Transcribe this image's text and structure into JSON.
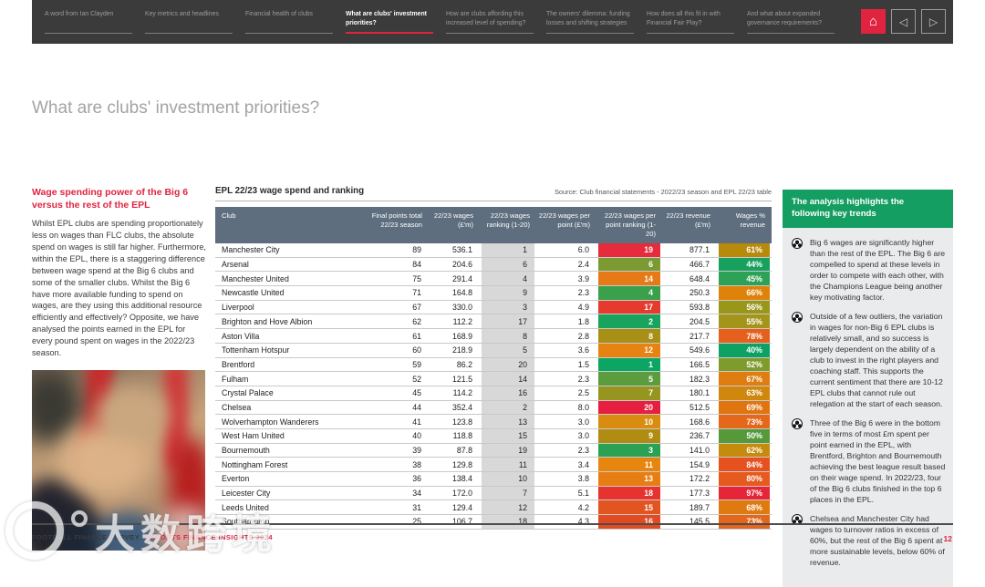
{
  "nav": {
    "tabs": [
      {
        "label": "A word from Ian Clayden",
        "active": false
      },
      {
        "label": "Key metrics and headlines",
        "active": false
      },
      {
        "label": "Financial health of clubs",
        "active": false
      },
      {
        "label": "What are clubs' investment priorities?",
        "active": true
      },
      {
        "label": "How are clubs affording this increased level of spending?",
        "active": false
      },
      {
        "label": "The owners' dilemma: funding losses and shifting strategies",
        "active": false
      },
      {
        "label": "How does all this fit in with Financial Fair Play?",
        "active": false
      },
      {
        "label": "And what about expanded governance requirements?",
        "active": false
      }
    ],
    "home_icon": "⌂",
    "prev_icon": "◁",
    "next_icon": "▷"
  },
  "page": {
    "title": "What are clubs' investment priorities?"
  },
  "left": {
    "heading": "Wage spending power of the Big 6 versus the rest of the EPL",
    "body": "Whilst EPL clubs are spending proportionately less on wages than FLC clubs, the absolute spend on wages is still far higher. Furthermore, within the EPL, there is a staggering difference between wage spend at the Big 6 clubs and some of the smaller clubs. Whilst the Big 6 have more available funding to spend on wages, are they using this additional resource efficiently and effectively? Opposite, we have analysed the points earned in the EPL for every pound spent on wages in the 2022/23 season."
  },
  "table": {
    "title": "EPL 22/23 wage spend and ranking",
    "source": "Source: Club financial statements - 2022/23 season and EPL 22/23 table",
    "columns": [
      "Club",
      "Final points total 22/23 season",
      "22/23 wages (£'m)",
      "22/23 wages ranking (1-20)",
      "22/23 wages per point (£'m)",
      "22/23 wages per point ranking (1-20)",
      "22/23 revenue (£'m)",
      "Wages % revenue"
    ],
    "rows": [
      {
        "club": "Manchester City",
        "points": "89",
        "wages": "536.1",
        "wages_rank": "1",
        "wages_per_point": "6.0",
        "wpp_rank": "19",
        "wpp_rank_color": "#e62b3c",
        "revenue": "877.1",
        "wages_pct": "61%",
        "wages_pct_color": "#b78a0b"
      },
      {
        "club": "Arsenal",
        "points": "84",
        "wages": "204.6",
        "wages_rank": "6",
        "wages_per_point": "2.4",
        "wpp_rank": "6",
        "wpp_rank_color": "#7b9a31",
        "revenue": "466.7",
        "wages_pct": "44%",
        "wages_pct_color": "#17a15e"
      },
      {
        "club": "Manchester United",
        "points": "75",
        "wages": "291.4",
        "wages_rank": "4",
        "wages_per_point": "3.9",
        "wpp_rank": "14",
        "wpp_rank_color": "#e67a16",
        "revenue": "648.4",
        "wages_pct": "45%",
        "wages_pct_color": "#2da156"
      },
      {
        "club": "Newcastle United",
        "points": "71",
        "wages": "164.8",
        "wages_rank": "9",
        "wages_per_point": "2.3",
        "wpp_rank": "4",
        "wpp_rank_color": "#3aa04c",
        "revenue": "250.3",
        "wages_pct": "66%",
        "wages_pct_color": "#df820a"
      },
      {
        "club": "Liverpool",
        "points": "67",
        "wages": "330.0",
        "wages_rank": "3",
        "wages_per_point": "4.9",
        "wpp_rank": "17",
        "wpp_rank_color": "#e63a2e",
        "revenue": "593.8",
        "wages_pct": "56%",
        "wages_pct_color": "#99961a"
      },
      {
        "club": "Brighton and Hove Albion",
        "points": "62",
        "wages": "112.2",
        "wages_rank": "17",
        "wages_per_point": "1.8",
        "wpp_rank": "2",
        "wpp_rank_color": "#18a45c",
        "revenue": "204.5",
        "wages_pct": "55%",
        "wages_pct_color": "#a3941a"
      },
      {
        "club": "Aston Villa",
        "points": "61",
        "wages": "168.9",
        "wages_rank": "8",
        "wages_per_point": "2.8",
        "wpp_rank": "8",
        "wpp_rank_color": "#a89016",
        "revenue": "217.7",
        "wages_pct": "78%",
        "wages_pct_color": "#e4601c"
      },
      {
        "club": "Tottenham Hotspur",
        "points": "60",
        "wages": "218.9",
        "wages_rank": "5",
        "wages_per_point": "3.6",
        "wpp_rank": "12",
        "wpp_rank_color": "#e68312",
        "revenue": "549.6",
        "wages_pct": "40%",
        "wages_pct_color": "#0da164"
      },
      {
        "club": "Brentford",
        "points": "59",
        "wages": "86.2",
        "wages_rank": "20",
        "wages_per_point": "1.5",
        "wpp_rank": "1",
        "wpp_rank_color": "#0ba664",
        "revenue": "166.5",
        "wages_pct": "52%",
        "wages_pct_color": "#7f9b2c"
      },
      {
        "club": "Fulham",
        "points": "52",
        "wages": "121.5",
        "wages_rank": "14",
        "wages_per_point": "2.3",
        "wpp_rank": "5",
        "wpp_rank_color": "#5b9c3e",
        "revenue": "182.3",
        "wages_pct": "67%",
        "wages_pct_color": "#e07d11"
      },
      {
        "club": "Crystal Palace",
        "points": "45",
        "wages": "114.2",
        "wages_rank": "16",
        "wages_per_point": "2.5",
        "wpp_rank": "7",
        "wpp_rank_color": "#95951f",
        "revenue": "180.1",
        "wages_pct": "63%",
        "wages_pct_color": "#cf870e"
      },
      {
        "club": "Chelsea",
        "points": "44",
        "wages": "352.4",
        "wages_rank": "2",
        "wages_per_point": "8.0",
        "wpp_rank": "20",
        "wpp_rank_color": "#e61f41",
        "revenue": "512.5",
        "wages_pct": "69%",
        "wages_pct_color": "#e0750f"
      },
      {
        "club": "Wolverhampton Wanderers",
        "points": "41",
        "wages": "123.8",
        "wages_rank": "13",
        "wages_per_point": "3.0",
        "wpp_rank": "10",
        "wpp_rank_color": "#d98d10",
        "revenue": "168.6",
        "wages_pct": "73%",
        "wages_pct_color": "#e4671a"
      },
      {
        "club": "West Ham United",
        "points": "40",
        "wages": "118.8",
        "wages_rank": "15",
        "wages_per_point": "3.0",
        "wpp_rank": "9",
        "wpp_rank_color": "#b18c13",
        "revenue": "236.7",
        "wages_pct": "50%",
        "wages_pct_color": "#55993b"
      },
      {
        "club": "Bournemouth",
        "points": "39",
        "wages": "87.8",
        "wages_rank": "19",
        "wages_per_point": "2.3",
        "wpp_rank": "3",
        "wpp_rank_color": "#2ba253",
        "revenue": "141.0",
        "wages_pct": "62%",
        "wages_pct_color": "#c48b0c"
      },
      {
        "club": "Nottingham Forest",
        "points": "38",
        "wages": "129.8",
        "wages_rank": "11",
        "wages_per_point": "3.4",
        "wpp_rank": "11",
        "wpp_rank_color": "#e6860f",
        "revenue": "154.9",
        "wages_pct": "84%",
        "wages_pct_color": "#e7511f"
      },
      {
        "club": "Everton",
        "points": "36",
        "wages": "138.4",
        "wages_rank": "10",
        "wages_per_point": "3.8",
        "wpp_rank": "13",
        "wpp_rank_color": "#e67e14",
        "revenue": "172.2",
        "wages_pct": "80%",
        "wages_pct_color": "#e65a1d"
      },
      {
        "club": "Leicester City",
        "points": "34",
        "wages": "172.0",
        "wages_rank": "7",
        "wages_per_point": "5.1",
        "wpp_rank": "18",
        "wpp_rank_color": "#e6332f",
        "revenue": "177.3",
        "wages_pct": "97%",
        "wages_pct_color": "#e72539"
      },
      {
        "club": "Leeds United",
        "points": "31",
        "wages": "129.4",
        "wages_rank": "12",
        "wages_per_point": "4.2",
        "wpp_rank": "15",
        "wpp_rank_color": "#e25420",
        "revenue": "189.7",
        "wages_pct": "68%",
        "wages_pct_color": "#df7a10"
      },
      {
        "club": "Southampton",
        "points": "25",
        "wages": "106.7",
        "wages_rank": "18",
        "wages_per_point": "4.3",
        "wpp_rank": "16",
        "wpp_rank_color": "#e24b22",
        "revenue": "145.5",
        "wages_pct": "73%",
        "wages_pct_color": "#e4661a"
      }
    ]
  },
  "trends": {
    "heading": "The analysis highlights the following key trends",
    "items": [
      "Big 6 wages are significantly higher than the rest of the EPL. The Big 6 are compelled to spend at these levels in order to compete with each other, with the Champions League being another key motivating factor.",
      "Outside of a few outliers, the variation in wages for non-Big 6 EPL clubs is relatively small, and so success is largely dependent on the ability of a club to invest in the right players and coaching staff. This supports the current sentiment that there are 10-12 EPL clubs that cannot rule out relegation at the start of each season.",
      "Three of the Big 6 were in the bottom five in terms of most £m spent per point earned in the EPL, with Brentford, Brighton and Bournemouth achieving the best league result based on their wage spend. In 2022/23, four of the Big 6 clubs finished in the top 6 places in the EPL.",
      "Chelsea and Manchester City had wages to turnover ratios in excess of 60%, but the rest of the Big 6 spent at more sustainable levels, below 60% of revenue."
    ]
  },
  "footer": {
    "left_text": "FOOTBALL FINANCE SURVEY",
    "separator": "|",
    "right_text": "SPORTS FINANCE INSIGHTS 2024",
    "page_number": "12"
  },
  "watermark": {
    "text": "大数跨境"
  },
  "colors": {
    "accent_red": "#e02440",
    "green": "#149e62",
    "table_header_slate": "#5e6e7e",
    "nav_bg": "#3b3b3b",
    "rank_col_gray": "#d8d8d8",
    "panel_gray": "#e9ebed"
  }
}
